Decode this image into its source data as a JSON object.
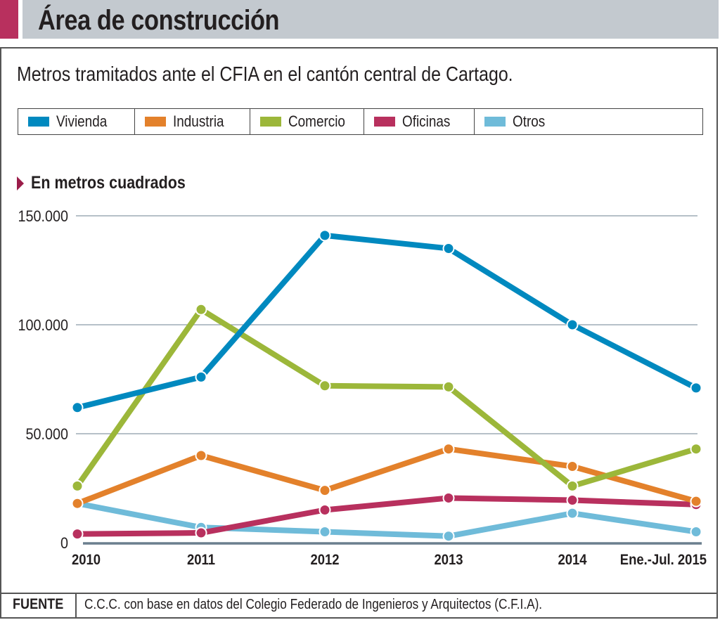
{
  "header": {
    "title": "Área de construcción",
    "subtitle": "Metros tramitados ante el CFIA en el cantón central de Cartago.",
    "accent_color": "#b8305e"
  },
  "legend": [
    {
      "label": "Vivienda",
      "color": "#0089bf"
    },
    {
      "label": "Industria",
      "color": "#e3812b"
    },
    {
      "label": "Comercio",
      "color": "#9cb73a"
    },
    {
      "label": "Oficinas",
      "color": "#b8305e"
    },
    {
      "label": "Otros",
      "color": "#6fbbd9"
    }
  ],
  "unit_label": "En metros cuadrados",
  "footer": {
    "label": "FUENTE",
    "text": "C.C.C. con base en datos del Colegio Federado de Ingenieros y Arquitectos (C.F.I.A)."
  },
  "chart_data": {
    "type": "line",
    "title": "Área de construcción",
    "subtitle": "Metros tramitados ante el CFIA en el cantón central de Cartago.",
    "xlabel": "",
    "ylabel": "En metros cuadrados",
    "categories": [
      "2010",
      "2011",
      "2012",
      "2013",
      "2014",
      "Ene.-Jul. 2015"
    ],
    "ylim": [
      0,
      150000
    ],
    "yticks": [
      0,
      50000,
      100000,
      150000
    ],
    "ytick_labels": [
      "0",
      "50.000",
      "100.000",
      "150.000"
    ],
    "grid": true,
    "legend_position": "top",
    "series": [
      {
        "name": "Vivienda",
        "color": "#0089bf",
        "values": [
          62000,
          76000,
          141000,
          135000,
          100000,
          71000
        ]
      },
      {
        "name": "Industria",
        "color": "#e3812b",
        "values": [
          18000,
          40000,
          24000,
          43000,
          35000,
          19000
        ]
      },
      {
        "name": "Comercio",
        "color": "#9cb73a",
        "values": [
          26000,
          107000,
          72000,
          71500,
          26000,
          43000
        ]
      },
      {
        "name": "Oficinas",
        "color": "#b8305e",
        "values": [
          4000,
          4500,
          15000,
          20500,
          19500,
          17500
        ]
      },
      {
        "name": "Otros",
        "color": "#6fbbd9",
        "values": [
          18000,
          7000,
          5000,
          3000,
          13500,
          5000
        ]
      }
    ],
    "source": "C.C.C. con base en datos del Colegio Federado de Ingenieros y Arquitectos (C.F.I.A)."
  }
}
